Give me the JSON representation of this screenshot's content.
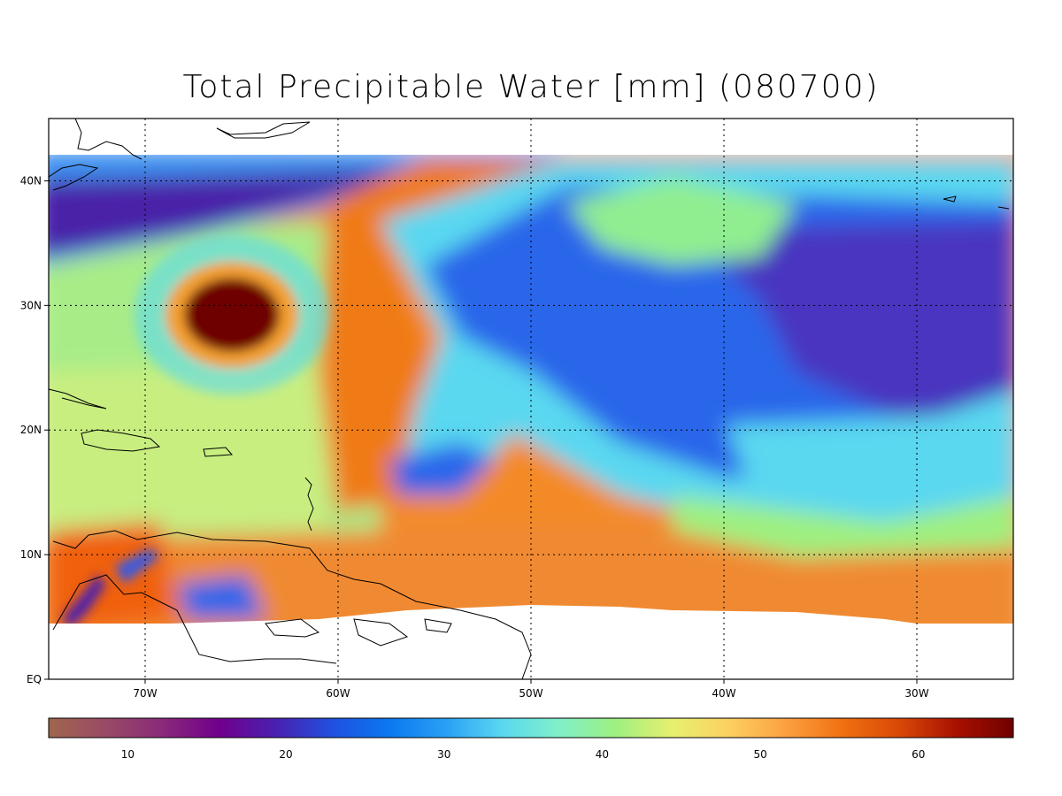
{
  "title": "Total Precipitable Water [mm]  (080700)",
  "map": {
    "lat_labels": [
      "40N",
      "30N",
      "20N",
      "10N",
      "EQ"
    ],
    "lat_values": [
      40,
      30,
      20,
      10,
      0
    ],
    "lon_labels": [
      "70W",
      "60W",
      "50W",
      "40W",
      "30W"
    ],
    "lon_values": [
      -70,
      -60,
      -50,
      -40,
      -30
    ],
    "lon_range": [
      -75,
      -25
    ],
    "lat_range": [
      0,
      45
    ]
  },
  "colorbar": {
    "min": 5,
    "max": 66,
    "tick_labels": [
      "10",
      "20",
      "30",
      "40",
      "50",
      "60"
    ],
    "tick_values": [
      10,
      20,
      30,
      40,
      50,
      60
    ],
    "colors": [
      "#a0664d",
      "#9a4a66",
      "#8a2a7a",
      "#70008c",
      "#4a20b0",
      "#2050e0",
      "#0a78f0",
      "#2aa0f5",
      "#5ad8f0",
      "#80f0c8",
      "#9ef080",
      "#e8f070",
      "#fcd060",
      "#fca040",
      "#f07010",
      "#d84808",
      "#a81000",
      "#700000"
    ]
  },
  "field_colors": {
    "dry": "#4a22a8",
    "blue": "#2a66ea",
    "cyan": "#5ad8f0",
    "green": "#90ee90",
    "yellow": "#f4e070",
    "orange": "#f48a28",
    "deep_orange": "#e06010",
    "core": "#6e0000"
  }
}
